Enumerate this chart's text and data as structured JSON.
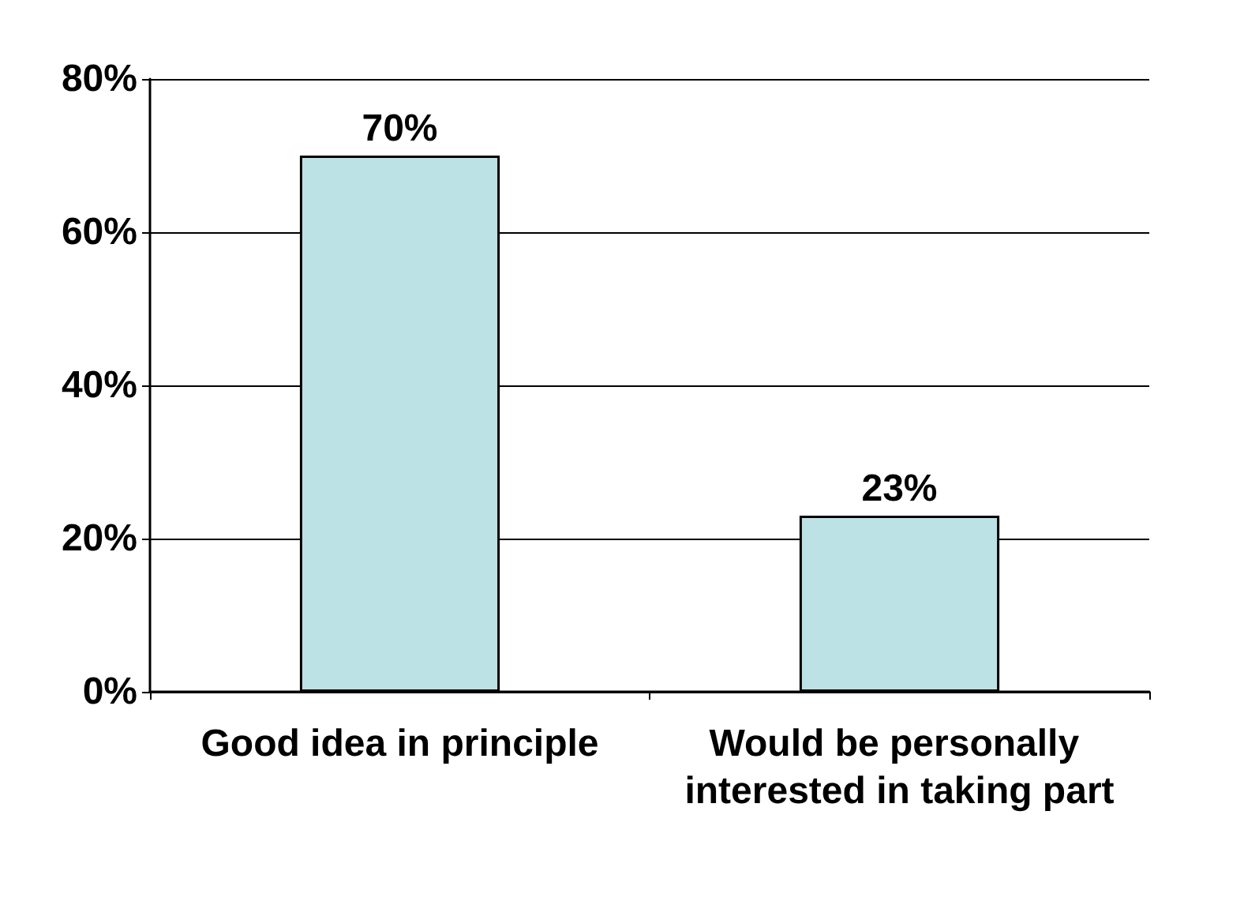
{
  "chart_data": {
    "type": "bar",
    "categories": [
      "Good idea in principle",
      "Would be personally interested in taking part"
    ],
    "values": [
      70,
      23
    ],
    "color": "#bce2e6",
    "value_labels": [
      "70%",
      "23%"
    ],
    "ylim": [
      0,
      80
    ],
    "yticks": [
      {
        "value": 0,
        "label": "0%"
      },
      {
        "value": 20,
        "label": "20%"
      },
      {
        "value": 40,
        "label": "40%"
      },
      {
        "value": 60,
        "label": "60%"
      },
      {
        "value": 80,
        "label": "80%"
      }
    ],
    "grid": "y"
  }
}
